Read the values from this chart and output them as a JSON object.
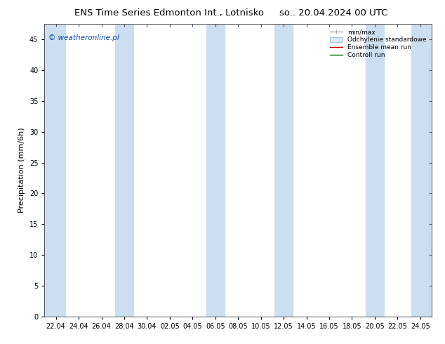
{
  "title_left": "ENS Time Series Edmonton Int., Lotnisko",
  "title_right": "so.. 20.04.2024 00 UTC",
  "ylabel": "Precipitation (mm/6h)",
  "ylim": [
    0,
    47.5
  ],
  "yticks": [
    0,
    5,
    10,
    15,
    20,
    25,
    30,
    35,
    40,
    45
  ],
  "xtick_labels": [
    "22.04",
    "24.04",
    "26.04",
    "28.04",
    "30.04",
    "02.05",
    "04.05",
    "06.05",
    "08.05",
    "10.05",
    "12.05",
    "14.05",
    "16.05",
    "18.05",
    "20.05",
    "22.05",
    "24.05"
  ],
  "xlim_start": 0.0,
  "xlim_end": 1.0,
  "shaded_bands": [
    [
      0.0,
      0.065
    ],
    [
      0.23,
      0.295
    ],
    [
      0.46,
      0.52
    ],
    [
      0.69,
      0.75
    ],
    [
      0.915,
      1.0
    ]
  ],
  "band_color": "#ccdff0",
  "watermark": "© weatheronline.pl",
  "watermark_color": "#1144bb",
  "watermark_fontsize": 7.5,
  "title_fontsize": 9.5,
  "tick_fontsize": 7,
  "ylabel_fontsize": 8,
  "legend_entries": [
    "min/max",
    "Odchylenie standardowe",
    "Ensemble mean run",
    "Controll run"
  ],
  "legend_line_colors": [
    "#aaaaaa",
    "#cccccc",
    "#cc0000",
    "#006600"
  ],
  "bg_color": "#ffffff",
  "spine_color": "#555555"
}
